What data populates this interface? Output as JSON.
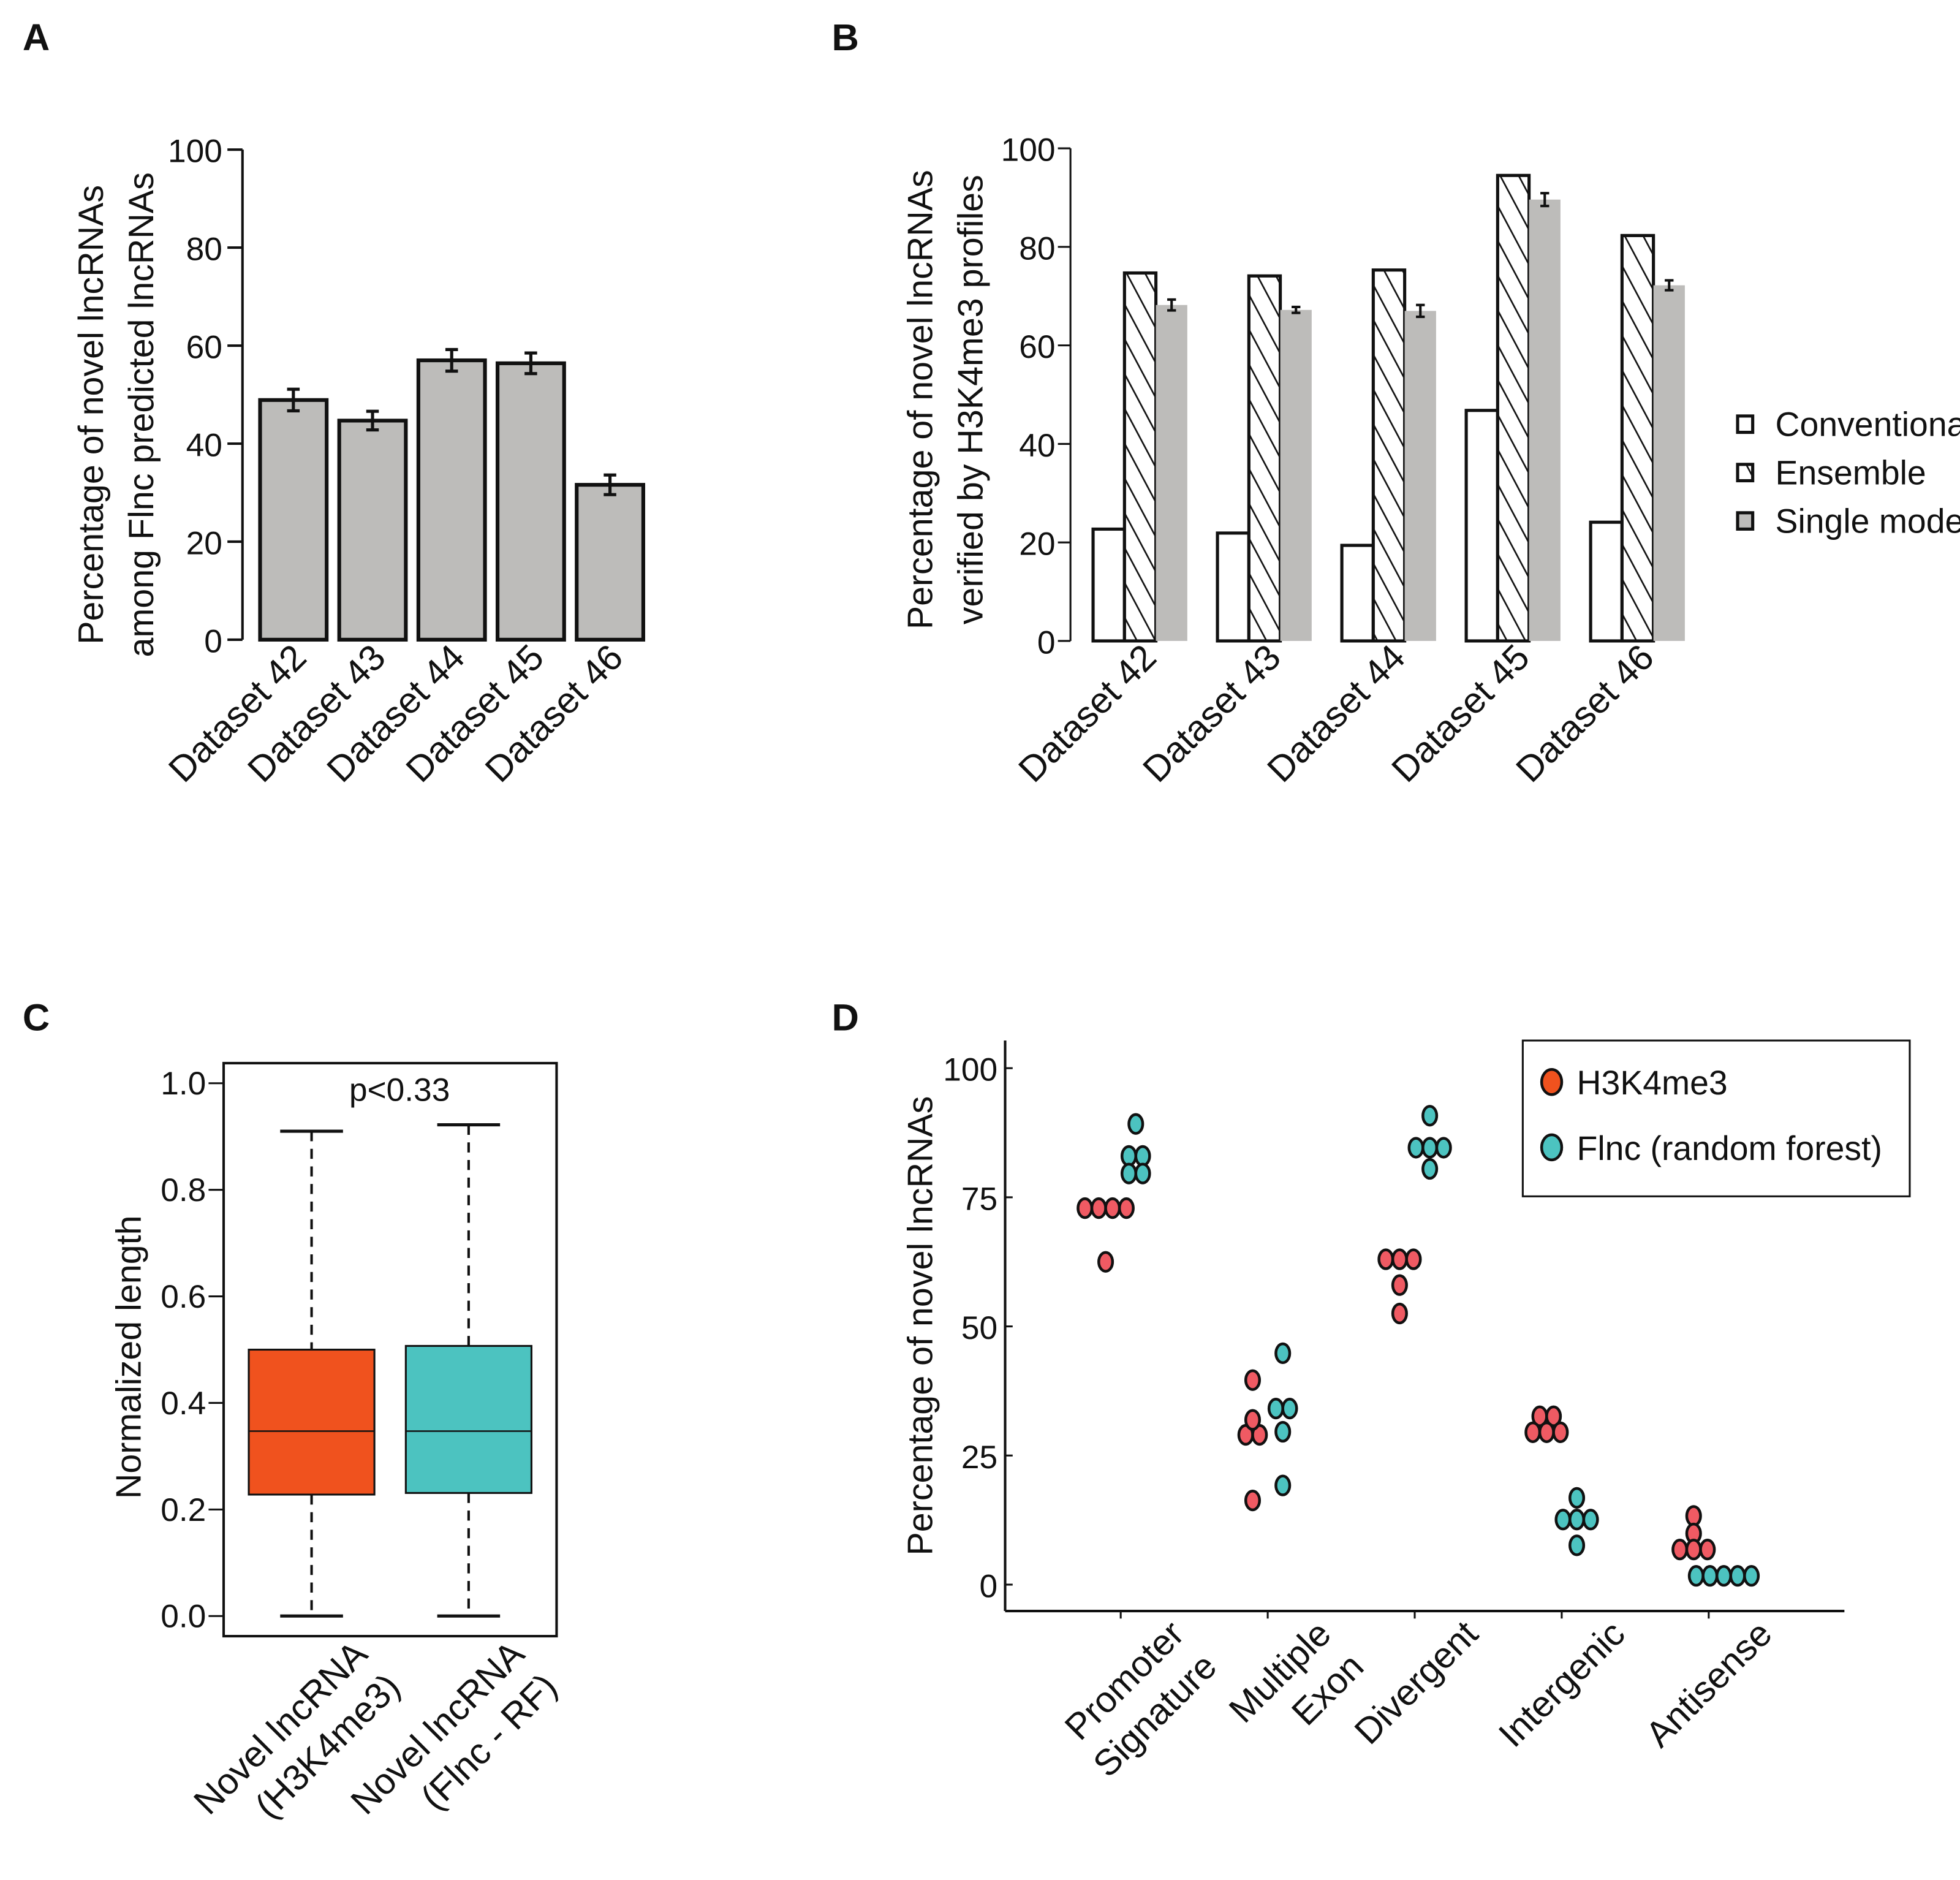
{
  "panels": {
    "A": "A",
    "B": "B",
    "C": "C",
    "D": "D"
  },
  "chart_data": [
    {
      "id": "A",
      "type": "bar",
      "title": "",
      "ylabel": [
        "Percentage of novel lncRNAs",
        "among Flnc predicted lncRNAs"
      ],
      "xlabel": "",
      "categories": [
        "Dataset 42",
        "Dataset 43",
        "Dataset 44",
        "Dataset 45",
        "Dataset 46"
      ],
      "values": [
        48.9,
        44.7,
        57.0,
        56.4,
        31.6
      ],
      "errors": [
        2.2,
        1.9,
        2.2,
        2.1,
        2.0
      ],
      "ylim": [
        0,
        100
      ],
      "yticks": [
        0,
        20,
        40,
        60,
        80,
        100
      ],
      "color": "#bdbcba"
    },
    {
      "id": "B",
      "type": "bar",
      "ylabel": [
        "Percentage of novel lncRNAs",
        "verified by H3K4me3 profiles"
      ],
      "categories": [
        "Dataset 42",
        "Dataset 43",
        "Dataset 44",
        "Dataset 45",
        "Dataset 46"
      ],
      "series": [
        {
          "name": "Conventional",
          "values": [
            22.7,
            21.9,
            19.4,
            46.8,
            24.1
          ],
          "style": "white"
        },
        {
          "name": "Ensemble",
          "values": [
            74.7,
            74.1,
            75.3,
            94.5,
            82.3
          ],
          "style": "hatch"
        },
        {
          "name": "Single model",
          "values": [
            68.2,
            67.2,
            67.0,
            89.6,
            72.2
          ],
          "errors": [
            1.1,
            0.6,
            1.2,
            1.3,
            1.0
          ],
          "style": "gray"
        }
      ],
      "ylim": [
        0,
        100
      ],
      "yticks": [
        0,
        20,
        40,
        60,
        80,
        100
      ],
      "legend_position": "right",
      "gray_color": "#bdbcba"
    },
    {
      "id": "C",
      "type": "box",
      "ylabel": "Normalized length",
      "annotation": "p<0.33",
      "categories": [
        [
          "Novel lncRNA",
          "(H3K4me3)"
        ],
        [
          "Novel lncRNA",
          "(Flnc - RF)"
        ]
      ],
      "boxes": [
        {
          "min": 0.0,
          "q1": 0.228,
          "median": 0.347,
          "q3": 0.5,
          "max": 0.91,
          "color": "#f0521e"
        },
        {
          "min": 0.0,
          "q1": 0.231,
          "median": 0.347,
          "q3": 0.507,
          "max": 0.922,
          "color": "#4cc3c0"
        }
      ],
      "ylim": [
        0,
        1.0
      ],
      "yticks": [
        "0.0",
        "0.2",
        "0.4",
        "0.6",
        "0.8",
        "1.0"
      ]
    },
    {
      "id": "D",
      "type": "scatter",
      "ylabel": "Percentage of novel lncRNAs",
      "categories": [
        [
          "Promoter",
          "Signature"
        ],
        [
          "Multiple",
          "Exon"
        ],
        [
          "Divergent"
        ],
        [
          "Intergenic"
        ],
        [
          "Antisense"
        ]
      ],
      "series": [
        {
          "name": "H3K4me3",
          "color": "#ef5a63",
          "legend_color": "#f0521e",
          "values": [
            [
              72.9,
              72.9,
              72.9,
              72.9,
              62.5
            ],
            [
              39.6,
              31.9,
              29.0,
              29.0,
              16.3
            ],
            [
              63.0,
              63.0,
              63.0,
              58.0,
              52.5
            ],
            [
              32.6,
              32.6,
              29.5,
              29.5,
              29.5
            ],
            [
              13.3,
              9.9,
              6.8,
              6.8,
              6.8
            ]
          ]
        },
        {
          "name": "Flnc (random forest)",
          "color": "#4cc3c0",
          "legend_color": "#4cc3c0",
          "values": [
            [
              89.2,
              83.0,
              83.0,
              79.6,
              79.6
            ],
            [
              44.8,
              34.1,
              34.1,
              29.6,
              19.2
            ],
            [
              90.8,
              84.6,
              84.6,
              84.6,
              80.5
            ],
            [
              16.8,
              12.6,
              12.6,
              12.6,
              7.6
            ],
            [
              1.7,
              1.7,
              1.7,
              1.7,
              1.7
            ]
          ]
        }
      ],
      "ylim": [
        -5,
        105
      ],
      "yticks": [
        0,
        25,
        50,
        75,
        100
      ],
      "legend_position": "top-right"
    }
  ]
}
